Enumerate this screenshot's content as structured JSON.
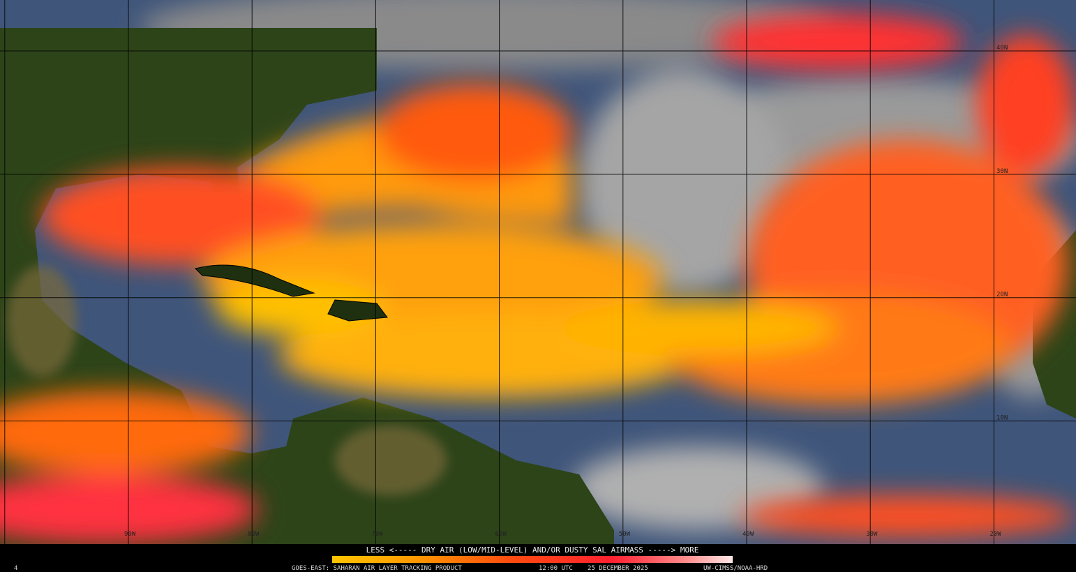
{
  "grid": {
    "lat_labels": [
      "40N",
      "30N",
      "20N",
      "10N"
    ],
    "lon_labels": [
      "90W",
      "80W",
      "70W",
      "60W",
      "50W",
      "40W",
      "30W",
      "20W"
    ]
  },
  "legend": {
    "caption": "LESS <----- DRY AIR (LOW/MID-LEVEL) AND/OR DUSTY SAL AIRMASS -----> MORE"
  },
  "footer": {
    "frame": "4",
    "product": "GOES-EAST: SAHARAN AIR LAYER TRACKING PRODUCT",
    "time": "12:00 UTC",
    "date": "25 DECEMBER 2025",
    "credit": "UW-CIMSS/NOAA-HRD"
  }
}
